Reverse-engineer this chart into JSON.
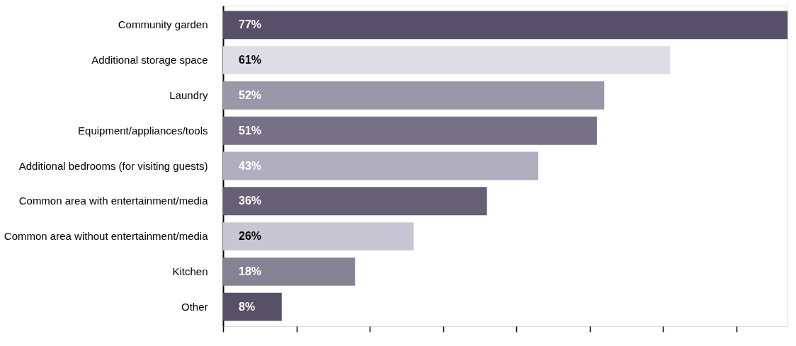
{
  "chart_data": {
    "type": "bar",
    "orientation": "horizontal",
    "categories": [
      "Community garden",
      "Additional storage space",
      "Laundry",
      "Equipment/appliances/tools",
      "Additional bedrooms (for visiting guests)",
      "Common area with entertainment/media",
      "Common area without entertainment/media",
      "Kitchen",
      "Other"
    ],
    "values": [
      77,
      61,
      52,
      51,
      43,
      36,
      26,
      18,
      8
    ],
    "colors": [
      "#575068",
      "#dedde6",
      "#9a97a9",
      "#767186",
      "#b0aebe",
      "#666076",
      "#c8c6d4",
      "#868294",
      "#575068"
    ],
    "value_labels": [
      "77%",
      "61%",
      "52%",
      "51%",
      "43%",
      "36%",
      "26%",
      "18%",
      "8%"
    ],
    "xlim": [
      0,
      77
    ],
    "xticks": [
      {
        "value": 0,
        "label": null
      },
      {
        "value": 10,
        "label": null
      },
      {
        "value": 20,
        "label": null
      },
      {
        "value": 30,
        "label": null
      },
      {
        "value": 40,
        "label": null
      },
      {
        "value": 50,
        "label": null
      },
      {
        "value": 60,
        "label": null
      },
      {
        "value": 70,
        "label": null
      }
    ],
    "grid": false
  }
}
